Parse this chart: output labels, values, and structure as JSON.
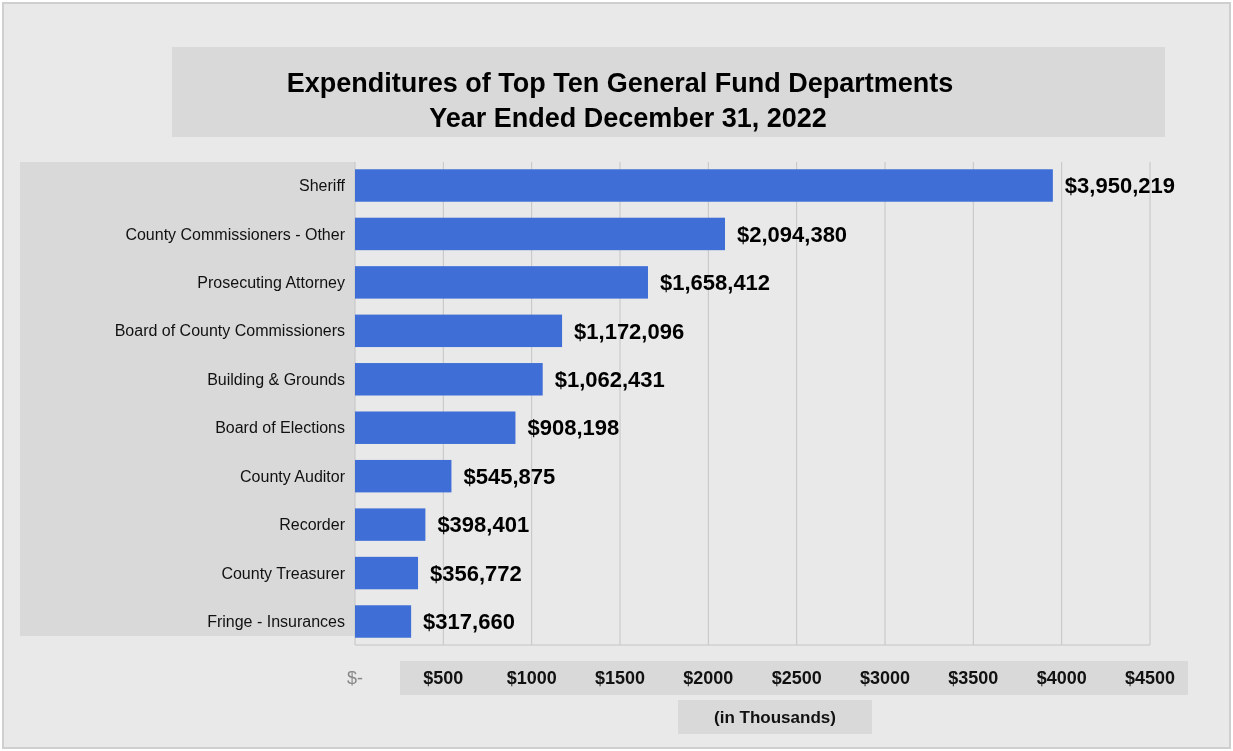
{
  "chart_data": {
    "type": "bar",
    "orientation": "horizontal",
    "title": "Expenditures of Top Ten General Fund Departments",
    "subtitle": "Year Ended December 31, 2022",
    "xlabel": "(in Thousands)",
    "categories": [
      "Sheriff",
      "County Commissioners - Other",
      "Prosecuting Attorney",
      "Board of County Commissioners",
      "Building & Grounds",
      "Board of Elections",
      "County Auditor",
      "Recorder",
      "County Treasurer",
      "Fringe - Insurances"
    ],
    "values": [
      3950.219,
      2094.38,
      1658.412,
      1172.096,
      1062.431,
      908.198,
      545.875,
      398.401,
      356.772,
      317.66
    ],
    "annotations": [
      {
        "text": "$3,950,219",
        "x": 3950.219,
        "y": "Sheriff"
      },
      {
        "text": "$2,094,380",
        "x": 2094.38,
        "y": "County Commissioners - Other"
      },
      {
        "text": "$1,658,412",
        "x": 1658.412,
        "y": "Prosecuting Attorney"
      },
      {
        "text": "$1,172,096",
        "x": 1172.096,
        "y": "Board of County Commissioners"
      },
      {
        "text": "$1,062,431",
        "x": 1062.431,
        "y": "Building & Grounds"
      },
      {
        "text": "$908,198",
        "x": 908.198,
        "y": "Board of Elections"
      },
      {
        "text": "$545,875",
        "x": 545.875,
        "y": "County Auditor"
      },
      {
        "text": "$398,401",
        "x": 398.401,
        "y": "Recorder"
      },
      {
        "text": "$356,772",
        "x": 356.772,
        "y": "County Treasurer"
      },
      {
        "text": "$317,660",
        "x": 317.66,
        "y": "Fringe - Insurances"
      }
    ],
    "color": "#3f6fd6",
    "xlim": [
      0,
      4500
    ],
    "xticks": [
      {
        "value": 0,
        "label": "$-"
      },
      {
        "value": 500,
        "label": "$500"
      },
      {
        "value": 1000,
        "label": "$1000"
      },
      {
        "value": 1500,
        "label": "$1500"
      },
      {
        "value": 2000,
        "label": "$2000"
      },
      {
        "value": 2500,
        "label": "$2500"
      },
      {
        "value": 3000,
        "label": "$3000"
      },
      {
        "value": 3500,
        "label": "$3500"
      },
      {
        "value": 4000,
        "label": "$4000"
      },
      {
        "value": 4500,
        "label": "$4500"
      }
    ],
    "grid": "x"
  }
}
